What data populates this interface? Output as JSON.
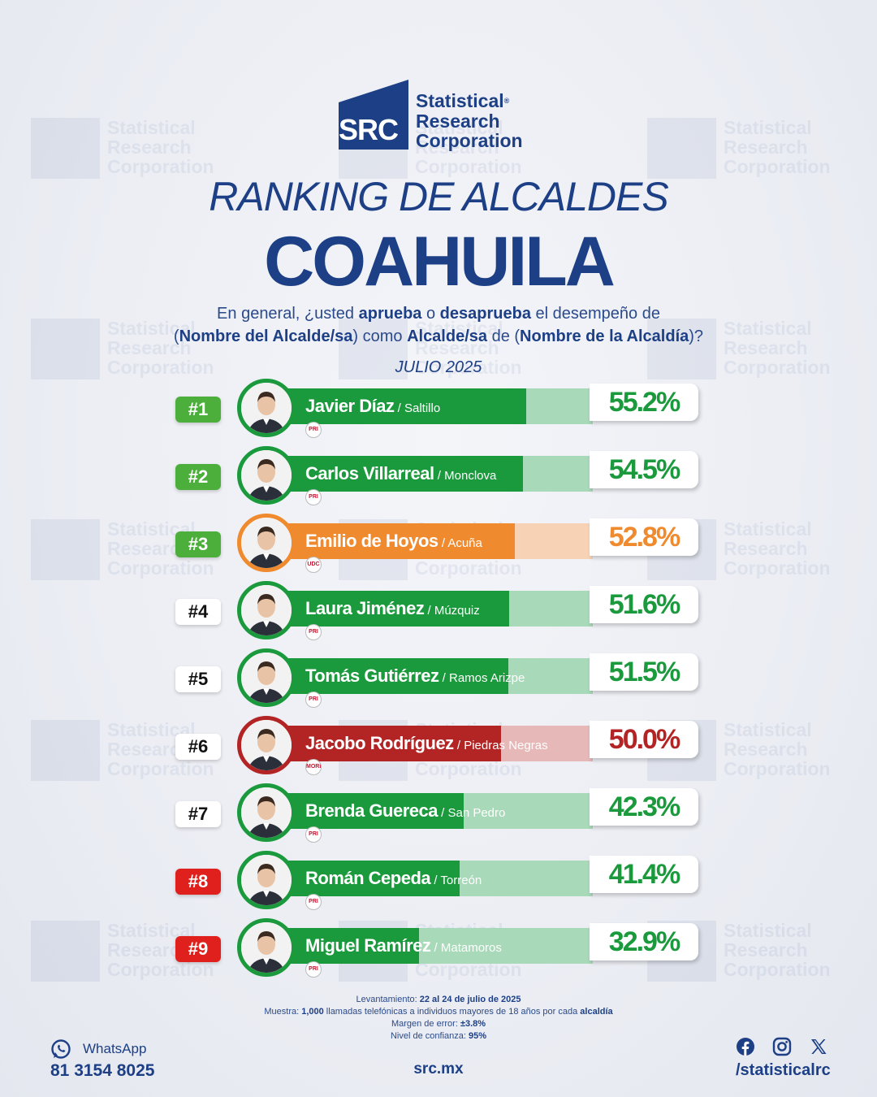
{
  "brand": {
    "logo_mark": "SRC",
    "logo_lines": [
      "Statistical",
      "Research",
      "Corporation"
    ],
    "registered": "®",
    "primary_color": "#1c3f86"
  },
  "header": {
    "title": "RANKING DE ALCALDES",
    "subtitle": "COAHUILA",
    "question": {
      "p1": "En general, ¿usted ",
      "b1": "aprueba",
      "p2": " o ",
      "b2": "desaprueba",
      "p3": " el desempeño de",
      "p4": "(",
      "b3": "Nombre del Alcalde/sa",
      "p5": ") como ",
      "b4": "Alcalde/sa",
      "p6": " de (",
      "b5": "Nombre de la Alcaldía",
      "p7": ")?"
    },
    "date": "JULIO 2025"
  },
  "chart_data": {
    "type": "bar",
    "orientation": "horizontal",
    "title": "RANKING DE ALCALDES COAHUILA",
    "categories": [
      "Javier Díaz",
      "Carlos Villarreal",
      "Emilio de Hoyos",
      "Laura Jiménez",
      "Tomás Gutiérrez",
      "Jacobo Rodríguez",
      "Brenda Guereca",
      "Román Cepeda",
      "Miguel Ramírez"
    ],
    "values": [
      55.2,
      54.5,
      52.8,
      51.6,
      51.5,
      50.0,
      42.3,
      41.4,
      32.9
    ],
    "value_labels": [
      "55.2%",
      "54.5%",
      "52.8%",
      "51.6%",
      "51.5%",
      "50.0%",
      "42.3%",
      "41.4%",
      "32.9%"
    ],
    "xlim": [
      0,
      100
    ],
    "items": [
      {
        "rank": "#1",
        "name": "Javier Díaz",
        "city": " / Saltillo",
        "value": 55.2,
        "label": "55.2%",
        "color": "#1a9a3c",
        "track": "#a8d9b8",
        "badge_bg": "#4caf3c",
        "badge_fg": "#ffffff",
        "pct_color": "#1a9a3c",
        "party": "PRI",
        "party_icon": "pri-logo-icon"
      },
      {
        "rank": "#2",
        "name": "Carlos Villarreal",
        "city": " / Monclova",
        "value": 54.5,
        "label": "54.5%",
        "color": "#1a9a3c",
        "track": "#a8d9b8",
        "badge_bg": "#4caf3c",
        "badge_fg": "#ffffff",
        "pct_color": "#1a9a3c",
        "party": "PRI",
        "party_icon": "pri-logo-icon"
      },
      {
        "rank": "#3",
        "name": "Emilio de Hoyos",
        "city": " / Acuña",
        "value": 52.8,
        "label": "52.8%",
        "color": "#f08a2e",
        "track": "#f7d2b4",
        "badge_bg": "#4caf3c",
        "badge_fg": "#ffffff",
        "pct_color": "#f08a2e",
        "party": "UDC",
        "party_icon": "udc-logo-icon"
      },
      {
        "rank": "#4",
        "name": "Laura Jiménez",
        "city": " / Múzquiz",
        "value": 51.6,
        "label": "51.6%",
        "color": "#1a9a3c",
        "track": "#a8d9b8",
        "badge_bg": "#ffffff",
        "badge_fg": "#111111",
        "pct_color": "#1a9a3c",
        "party": "PRI",
        "party_icon": "pri-logo-icon"
      },
      {
        "rank": "#5",
        "name": "Tomás Gutiérrez",
        "city": " / Ramos Arizpe",
        "value": 51.5,
        "label": "51.5%",
        "color": "#1a9a3c",
        "track": "#a8d9b8",
        "badge_bg": "#ffffff",
        "badge_fg": "#111111",
        "pct_color": "#1a9a3c",
        "party": "PRI",
        "party_icon": "pri-logo-icon"
      },
      {
        "rank": "#6",
        "name": "Jacobo Rodríguez",
        "city": " / Piedras Negras",
        "value": 50.0,
        "label": "50.0%",
        "color": "#b32524",
        "track": "#e6b8b8",
        "badge_bg": "#ffffff",
        "badge_fg": "#111111",
        "pct_color": "#b32524",
        "party": "MORENA",
        "party_icon": "morena-logo-icon"
      },
      {
        "rank": "#7",
        "name": "Brenda Guereca",
        "city": " / San Pedro",
        "value": 42.3,
        "label": "42.3%",
        "color": "#1a9a3c",
        "track": "#a8d9b8",
        "badge_bg": "#ffffff",
        "badge_fg": "#111111",
        "pct_color": "#1a9a3c",
        "party": "PRI",
        "party_icon": "pri-logo-icon"
      },
      {
        "rank": "#8",
        "name": "Román Cepeda",
        "city": " / Torreón",
        "value": 41.4,
        "label": "41.4%",
        "color": "#1a9a3c",
        "track": "#a8d9b8",
        "badge_bg": "#e0201c",
        "badge_fg": "#ffffff",
        "pct_color": "#1a9a3c",
        "party": "PRI",
        "party_icon": "pri-logo-icon"
      },
      {
        "rank": "#9",
        "name": "Miguel Ramírez",
        "city": " / Matamoros",
        "value": 32.9,
        "label": "32.9%",
        "color": "#1a9a3c",
        "track": "#a8d9b8",
        "badge_bg": "#e0201c",
        "badge_fg": "#ffffff",
        "pct_color": "#1a9a3c",
        "party": "PRI",
        "party_icon": "pri-logo-icon"
      }
    ]
  },
  "methodology": {
    "l1_label": "Levantamiento: ",
    "l1_value": "22 al 24 de julio de 2025",
    "l2_label": "Muestra: ",
    "l2_value": "1,000",
    "l2_text": " llamadas telefónicas a individuos mayores de 18 años por cada ",
    "l2_bold": "alcaldía",
    "l3_label": "Margen de error: ",
    "l3_value": "±3.8%",
    "l4_label": "Nivel de confianza: ",
    "l4_value": "95%"
  },
  "footer": {
    "whatsapp_label": "WhatsApp",
    "whatsapp_number": "81 3154 8025",
    "whatsapp_icon": "whatsapp-icon",
    "website": "src.mx",
    "social_icons": [
      "facebook-icon",
      "instagram-icon",
      "x-icon"
    ],
    "social_handle": "/statisticalrc"
  }
}
